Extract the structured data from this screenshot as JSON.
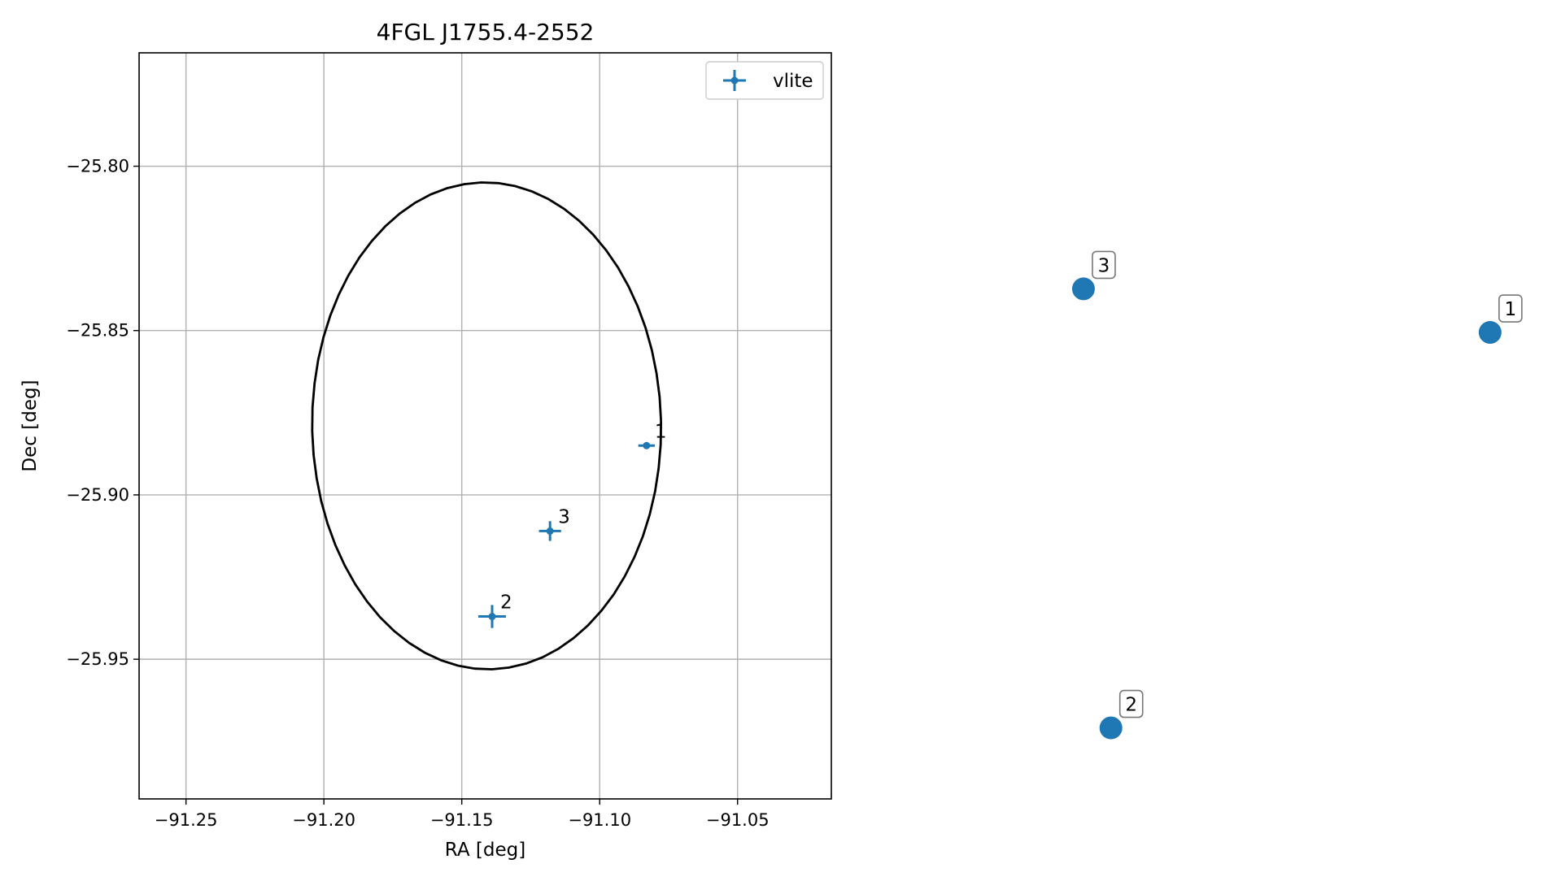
{
  "chart_data": [
    {
      "type": "scatter",
      "title": "4FGL J1755.4-2552",
      "xlabel": "RA [deg]",
      "ylabel": "Dec [deg]",
      "xlim": [
        -91.267,
        -91.016
      ],
      "ylim": [
        -25.9925,
        -25.7655
      ],
      "xticks": [
        -91.25,
        -91.2,
        -91.15,
        -91.1,
        -91.05
      ],
      "xtick_labels": [
        "−91.25",
        "−91.20",
        "−91.15",
        "−91.10",
        "−91.05"
      ],
      "yticks": [
        -25.8,
        -25.85,
        -25.9,
        -25.95
      ],
      "ytick_labels": [
        "−25.80",
        "−25.85",
        "−25.90",
        "−25.95"
      ],
      "grid": true,
      "legend": {
        "placement": "upper-right",
        "entries": [
          "vlite"
        ]
      },
      "series": [
        {
          "name": "vlite",
          "color": "#1f77b4",
          "marker": "errorbar",
          "points": [
            {
              "label": "1",
              "x": -91.083,
              "y": -25.885,
              "xerr": 0.003,
              "yerr": 0.0008
            },
            {
              "label": "2",
              "x": -91.139,
              "y": -25.937,
              "xerr": 0.005,
              "yerr": 0.0035
            },
            {
              "label": "3",
              "x": -91.118,
              "y": -25.911,
              "xerr": 0.004,
              "yerr": 0.003
            }
          ]
        }
      ],
      "ellipse": {
        "color": "#000000",
        "center": {
          "x": -91.141,
          "y": -25.879
        },
        "semi_x": 0.0642,
        "semi_y": 0.0752,
        "rotation_deg": 10
      }
    },
    {
      "type": "scatter",
      "title": "",
      "axes_visible": false,
      "xlim": [
        0,
        1
      ],
      "ylim": [
        0,
        1
      ],
      "series": [
        {
          "color": "#1f77b4",
          "marker": "circle",
          "points": [
            {
              "label": "1",
              "x": 0.945,
              "y": 0.79
            },
            {
              "label": "2",
              "x": 0.172,
              "y": 0.055
            },
            {
              "label": "3",
              "x": 0.116,
              "y": 0.871
            }
          ]
        }
      ]
    }
  ]
}
